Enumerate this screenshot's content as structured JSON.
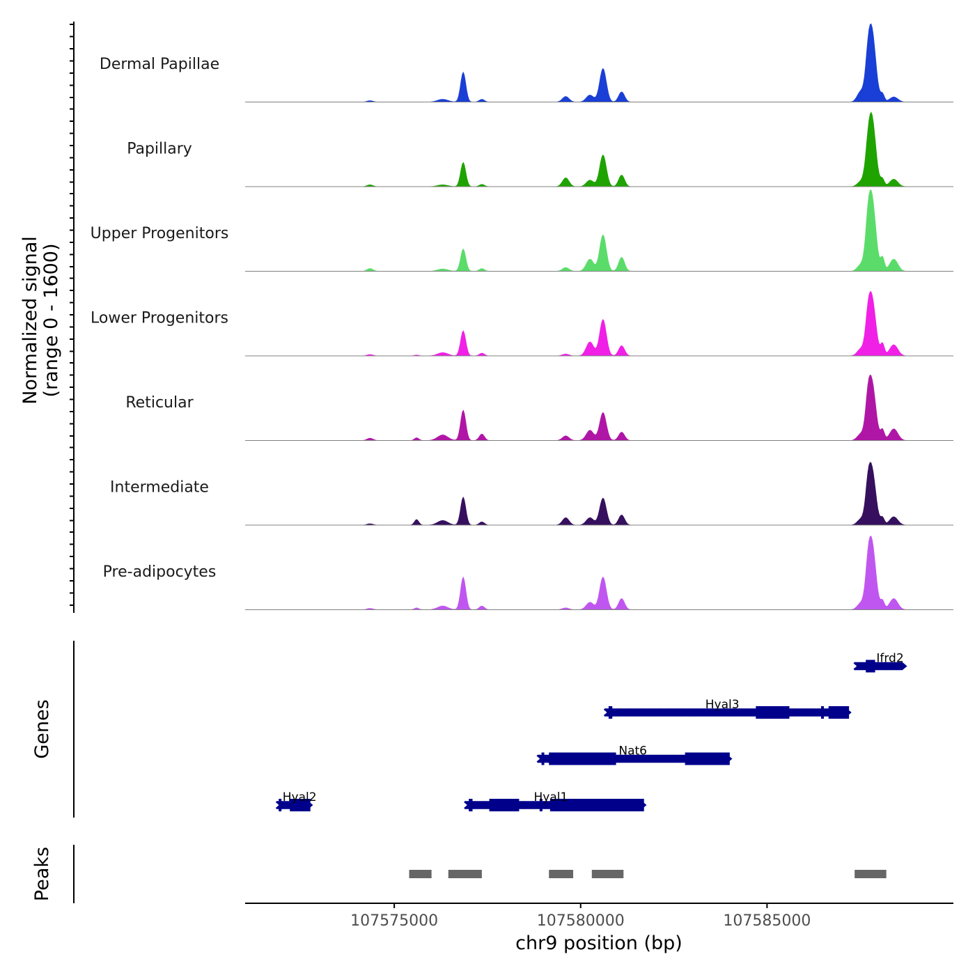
{
  "chart_data": {
    "type": "area",
    "title": "",
    "xlabel": "chr9 position (bp)",
    "ylabel": "Normalized signal\n(range 0 - 1600)",
    "ylabel_line1": "Normalized signal",
    "ylabel_line2": "(range 0 - 1600)",
    "genes_label": "Genes",
    "peaks_label": "Peaks",
    "xlim": [
      107571000,
      107590000
    ],
    "ylim": [
      0,
      1600
    ],
    "x_ticks": [
      107575000,
      107580000,
      107585000
    ],
    "x_tick_labels": [
      "107575000",
      "107580000",
      "107585000"
    ],
    "peak_shape": {
      "centers": [
        107574350,
        107575600,
        107576300,
        107576850,
        107577350,
        107579600,
        107580250,
        107580600,
        107581100,
        107587500,
        107587700,
        107587800,
        107588100,
        107588400
      ],
      "widths": [
        80,
        60,
        140,
        70,
        70,
        90,
        100,
        90,
        80,
        90,
        60,
        110,
        50,
        110
      ]
    },
    "series": [
      {
        "name": "Dermal Papillae",
        "color": "#1a3fd6",
        "values": [
          30,
          0,
          60,
          640,
          60,
          120,
          150,
          720,
          220,
          200,
          250,
          1600,
          160,
          110
        ]
      },
      {
        "name": "Papillary",
        "color": "#1fa300",
        "values": [
          40,
          0,
          40,
          520,
          50,
          190,
          140,
          680,
          250,
          90,
          150,
          1550,
          150,
          160
        ]
      },
      {
        "name": "Upper Progenitors",
        "color": "#5bdc6a",
        "values": [
          60,
          0,
          50,
          480,
          60,
          80,
          260,
          780,
          300,
          120,
          300,
          1650,
          280,
          260
        ]
      },
      {
        "name": "Lower Progenitors",
        "color": "#f020e6",
        "values": [
          30,
          20,
          70,
          540,
          60,
          40,
          300,
          780,
          220,
          130,
          250,
          1300,
          250,
          240
        ]
      },
      {
        "name": "Reticular",
        "color": "#b016a6",
        "values": [
          50,
          60,
          120,
          650,
          140,
          100,
          220,
          600,
          180,
          120,
          300,
          1300,
          220,
          250
        ]
      },
      {
        "name": "Intermediate",
        "color": "#36105e",
        "values": [
          30,
          120,
          100,
          600,
          70,
          160,
          160,
          580,
          220,
          110,
          280,
          1250,
          150,
          180
        ]
      },
      {
        "name": "Pre-adipocytes",
        "color": "#c056f0",
        "values": [
          30,
          40,
          80,
          700,
          80,
          40,
          160,
          700,
          240,
          120,
          260,
          1500,
          180,
          240
        ]
      }
    ],
    "genes": [
      {
        "name": "Hyal2",
        "start": 107571900,
        "end": 107572750,
        "row": 0,
        "strand": "+",
        "exons": [
          [
            107571900,
            107571950
          ],
          [
            107572200,
            107572750
          ]
        ]
      },
      {
        "name": "Hyal1",
        "start": 107576950,
        "end": 107581700,
        "row": 0,
        "strand": "+",
        "exons": [
          [
            107577000,
            107577100
          ],
          [
            107577550,
            107578350
          ],
          [
            107578900,
            107578960
          ],
          [
            107579180,
            107581700
          ]
        ]
      },
      {
        "name": "Nat6",
        "start": 107578900,
        "end": 107584000,
        "row": 1,
        "strand": "+",
        "exons": [
          [
            107578950,
            107579000
          ],
          [
            107579150,
            107580950
          ],
          [
            107582800,
            107584000
          ]
        ]
      },
      {
        "name": "Hyal3",
        "start": 107580700,
        "end": 107587200,
        "row": 2,
        "strand": "+",
        "exons": [
          [
            107580750,
            107580850
          ],
          [
            107584700,
            107585600
          ],
          [
            107586450,
            107586500
          ],
          [
            107586650,
            107587200
          ]
        ]
      },
      {
        "name": "Ifrd2",
        "start": 107587400,
        "end": 107588700,
        "row": 3,
        "strand": "+",
        "exons": [
          [
            107587650,
            107587900
          ]
        ]
      }
    ],
    "peaks": [
      [
        107575400,
        107576000
      ],
      [
        107576450,
        107577350
      ],
      [
        107579150,
        107579800
      ],
      [
        107580300,
        107581150
      ],
      [
        107587350,
        107588200
      ]
    ]
  }
}
